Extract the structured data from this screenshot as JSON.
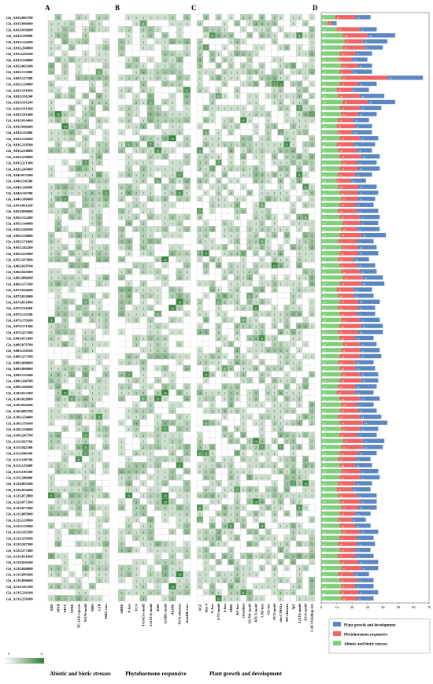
{
  "panel_letters": {
    "A": "A",
    "B": "B",
    "C": "C",
    "D": "D"
  },
  "colorbar": {
    "min_label": "0",
    "max_label": "11",
    "low_color": "#ffffff",
    "high_color": "#2e7d32"
  },
  "group_labels": {
    "abiotic": "Abiotic and biotic stresses",
    "phyto": "Phytohormone responsive",
    "growth": "Plant growth and development"
  },
  "genes": [
    "Gh_A01G005700",
    "Gh_A01G006900",
    "Gh_A01G036600",
    "Gh_A01G118800",
    "Gh_A01G124200",
    "Gh_A01G204800",
    "Gh_A01G229100",
    "Gh_A01G230000",
    "Gh_A02G063500",
    "Gh_A02G113000",
    "Gh_A02G117500",
    "Gh_A02G139400",
    "Gh_A02G191000",
    "Gh_A02G191100",
    "Gh_A02G191200",
    "Gh_A02G191300",
    "Gh_A02G191400",
    "Gh_A03G014400",
    "Gh_A03G046600",
    "Gh_A03G115800",
    "Gh_A03G138200",
    "Gh_A03G218500",
    "Gh_A03G218600",
    "Gh_A03G220900",
    "Gh_A03G221300",
    "Gh_A03G245000",
    "Gh_A04G075200",
    "Gh_A04G116500",
    "Gh_A04G116600",
    "Gh_A04G116700",
    "Gh_A04G186600",
    "Gh_A05G061200",
    "Gh_A05G098400",
    "Gh_A05G132400",
    "Gh_A05G144000",
    "Gh_A05G146500",
    "Gh_A05G156600",
    "Gh_A05G171800",
    "Gh_A05G182200",
    "Gh_A05G255900",
    "Gh_A05G415000",
    "Gh_A06G018700",
    "Gh_A06G045000",
    "Gh_A06G086600",
    "Gh_A06G157500",
    "Gh_A07G016600",
    "Gh_A07G032000",
    "Gh_A07G051800",
    "Gh_A07G114400",
    "Gh_A07G115100",
    "Gh_A07G170200",
    "Gh_A07G171500",
    "Gh_A07G257500",
    "Gh_A08G072400",
    "Gh_A08G079700",
    "Gh_A08G126100",
    "Gh_A08G257200",
    "Gh_A09G008600",
    "Gh_A09G009000",
    "Gh_A09G124300",
    "Gh_A09G160700",
    "Gh_A09G169500",
    "Gh_A10G012500",
    "Gh_A10G020900",
    "Gh_A10G026300",
    "Gh_A10G083700",
    "Gh_A10G150400",
    "Gh_A10G150500",
    "Gh_A10G210600",
    "Gh_A10G245700",
    "Gh_A11G025700",
    "Gh_A11G042500",
    "Gh_A11G046500",
    "Gh_A11G109700",
    "Gh_A11G123600",
    "Gh_A11G195500",
    "Gh_A11G200000",
    "Gh_A12G003200",
    "Gh_A12G056600",
    "Gh_A12G072800",
    "Gh_A12G077200",
    "Gh_A12G077400",
    "Gh_A12G085900",
    "Gh_A12G120900",
    "Gh_A12G135000",
    "Gh_A12G192500",
    "Gh_A12G239200",
    "Gh_A12G267300",
    "Gh_A12G277400",
    "Gh_A13G031600",
    "Gh_A13G036100",
    "Gh_A13G040800",
    "Gh_A13G085600",
    "Gh_A13G096000",
    "Gh_A13G197100",
    "Gh_A13G236200",
    "Gh_A13G258300"
  ],
  "columns": {
    "abiotic": [
      "ARE",
      "MYB",
      "MYC",
      "STRE",
      "TC-rich repeats",
      "WUN-motif",
      "MBS",
      "LTR",
      "DRE core"
    ],
    "phyto": [
      "ABRE",
      "P-box",
      "TCA",
      "TGACG-motif",
      "CGTCA-motif",
      "ERE",
      "GARE-motif",
      "AuxRE",
      "TGA-element",
      "AuxRR-core"
    ],
    "growth": [
      "ACE",
      "Box 4",
      "G-box",
      "GT1-motif",
      "I-box",
      "MRE",
      "AE-box",
      "circadian",
      "GCN4_motif",
      "ATCT-motif",
      "CAT-box",
      "O2-site",
      "TCT-motif",
      "chs-CMA1a",
      "RY-element",
      "Sp1",
      "GATA-motif",
      "ACA-motif",
      "3-AF1 binding site"
    ]
  },
  "chart_data": [
    {
      "type": "heatmap",
      "panel": "A",
      "xlabel": "Abiotic and biotic stresses",
      "x_categories": [
        "ARE",
        "MYB",
        "MYC",
        "STRE",
        "TC-rich repeats",
        "WUN-motif",
        "MBS",
        "LTR",
        "DRE core"
      ],
      "y_categories_ref": "genes",
      "value_range": [
        0,
        11
      ]
    },
    {
      "type": "heatmap",
      "panel": "B",
      "xlabel": "Phytohormone responsive",
      "x_categories": [
        "ABRE",
        "P-box",
        "TCA",
        "TGACG-motif",
        "CGTCA-motif",
        "ERE",
        "GARE-motif",
        "AuxRE",
        "TGA-element",
        "AuxRR-core"
      ],
      "y_categories_ref": "genes",
      "value_range": [
        0,
        11
      ]
    },
    {
      "type": "heatmap",
      "panel": "C",
      "xlabel": "Plant growth and development",
      "x_categories": [
        "ACE",
        "Box 4",
        "G-box",
        "GT1-motif",
        "I-box",
        "MRE",
        "AE-box",
        "circadian",
        "GCN4_motif",
        "ATCT-motif",
        "CAT-box",
        "O2-site",
        "TCT-motif",
        "chs-CMA1a",
        "RY-element",
        "Sp1",
        "GATA-motif",
        "ACA-motif",
        "3-AF1 binding site"
      ],
      "y_categories_ref": "genes",
      "value_range": [
        0,
        11
      ]
    },
    {
      "type": "bar",
      "panel": "D",
      "orientation": "horizontal",
      "stacked": true,
      "xlim": [
        0,
        70
      ],
      "x_ticks": [
        0,
        10,
        20,
        30,
        40,
        50,
        60,
        70
      ],
      "legend_position": "bottom-right",
      "series": [
        {
          "name": "Abiotic and biotic stresses",
          "color": "#7fcf7a",
          "values": [
            9,
            4,
            10,
            14,
            15,
            14,
            12,
            11,
            13,
            12,
            13,
            12,
            10,
            11,
            14,
            12,
            13,
            11,
            10,
            11,
            12,
            10,
            11,
            12,
            13,
            12,
            11,
            10,
            11,
            12,
            13,
            12,
            11,
            12,
            14,
            13,
            12,
            11,
            13,
            12,
            11,
            12,
            13,
            14,
            12,
            10,
            11,
            12,
            11,
            12,
            13,
            12,
            11,
            12,
            14,
            13,
            12,
            11,
            12,
            13,
            12,
            11,
            10,
            12,
            13,
            12,
            11,
            12,
            13,
            12,
            14,
            13,
            12,
            11,
            12,
            13,
            12,
            11,
            10,
            11,
            12,
            13,
            12,
            11,
            12,
            13,
            12,
            11,
            12,
            11,
            12,
            13,
            11,
            12,
            13,
            12,
            13
          ]
        },
        {
          "name": "Phytohormone responsive",
          "color": "#ef6464",
          "values": [
            13,
            3,
            15,
            16,
            12,
            14,
            10,
            9,
            11,
            8,
            30,
            12,
            10,
            14,
            16,
            13,
            11,
            10,
            12,
            9,
            13,
            11,
            12,
            14,
            10,
            12,
            11,
            9,
            13,
            12,
            11,
            10,
            12,
            13,
            11,
            10,
            14,
            12,
            11,
            12,
            10,
            11,
            12,
            13,
            14,
            11,
            10,
            12,
            13,
            11,
            12,
            14,
            13,
            10,
            11,
            12,
            13,
            11,
            10,
            12,
            14,
            11,
            12,
            13,
            10,
            12,
            14,
            15,
            12,
            11,
            13,
            14,
            12,
            11,
            10,
            12,
            13,
            11,
            10,
            12,
            13,
            11,
            10,
            9,
            10,
            12,
            11,
            12,
            10,
            11,
            12,
            13,
            10,
            11,
            9,
            12,
            10
          ]
        },
        {
          "name": "Plant growth and development",
          "color": "#5a86c2",
          "values": [
            10,
            3,
            11,
            18,
            16,
            12,
            11,
            10,
            9,
            13,
            23,
            12,
            11,
            16,
            18,
            14,
            12,
            10,
            11,
            13,
            12,
            14,
            10,
            12,
            13,
            14,
            11,
            10,
            12,
            13,
            11,
            12,
            14,
            13,
            12,
            15,
            16,
            11,
            12,
            13,
            10,
            12,
            11,
            13,
            15,
            12,
            13,
            14,
            11,
            12,
            13,
            14,
            16,
            12,
            11,
            13,
            14,
            12,
            13,
            12,
            11,
            14,
            12,
            13,
            11,
            12,
            14,
            16,
            12,
            13,
            14,
            13,
            12,
            10,
            11,
            12,
            13,
            11,
            12,
            13,
            11,
            12,
            10,
            9,
            10,
            12,
            11,
            12,
            10,
            12,
            13,
            11,
            10,
            11,
            12,
            13,
            11
          ]
        }
      ]
    }
  ]
}
